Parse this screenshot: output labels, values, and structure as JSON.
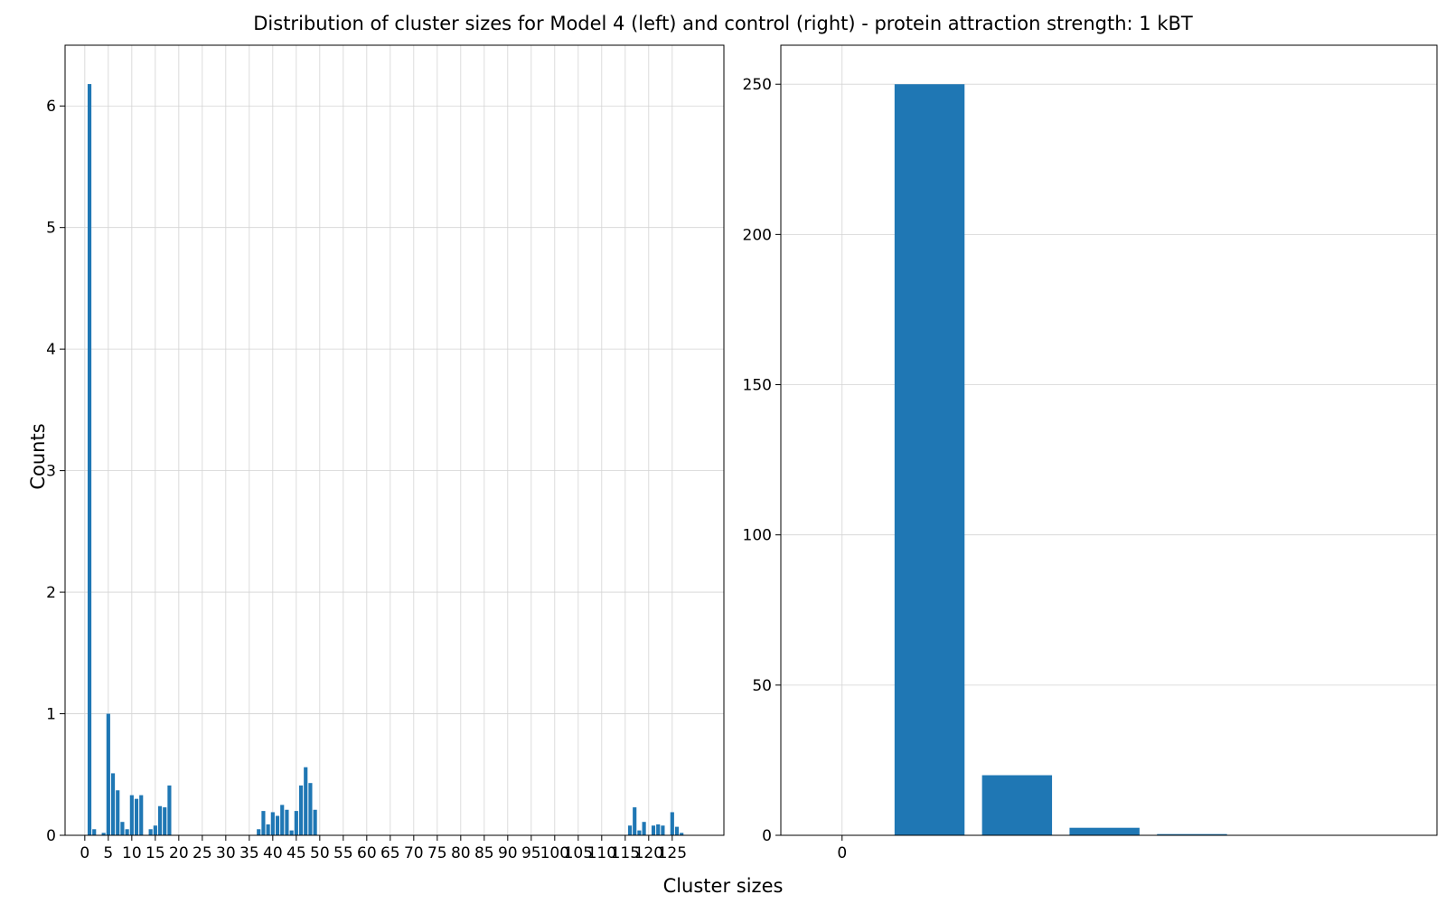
{
  "title": "Distribution of cluster sizes for Model 4 (left) and control (right) - protein attraction strength: 1 kBT",
  "xlabel": "Cluster sizes",
  "ylabel": "Counts",
  "colors": {
    "bar": "#1f77b4",
    "grid": "#d3d3d3"
  },
  "chart_data": [
    {
      "type": "bar",
      "panel": "left",
      "xlim": [
        -4.2,
        136
      ],
      "ylim": [
        0,
        6.5
      ],
      "xticks": [
        0,
        5,
        10,
        15,
        20,
        25,
        30,
        35,
        40,
        45,
        50,
        55,
        60,
        65,
        70,
        75,
        80,
        85,
        90,
        95,
        100,
        105,
        110,
        115,
        120,
        125
      ],
      "yticks": [
        0,
        1,
        2,
        3,
        4,
        5,
        6
      ],
      "grid": true,
      "bar_width": 0.8,
      "x": [
        1,
        2,
        4,
        5,
        6,
        7,
        8,
        9,
        10,
        11,
        12,
        14,
        15,
        16,
        17,
        18,
        37,
        38,
        39,
        40,
        41,
        42,
        43,
        44,
        45,
        46,
        47,
        48,
        49,
        116,
        117,
        118,
        119,
        121,
        122,
        123,
        125,
        126,
        127
      ],
      "values": [
        6.18,
        0.05,
        0.02,
        1.0,
        0.51,
        0.37,
        0.11,
        0.05,
        0.33,
        0.3,
        0.33,
        0.05,
        0.08,
        0.24,
        0.23,
        0.41,
        0.05,
        0.2,
        0.09,
        0.19,
        0.16,
        0.25,
        0.21,
        0.04,
        0.2,
        0.41,
        0.56,
        0.43,
        0.21,
        0.08,
        0.23,
        0.04,
        0.11,
        0.08,
        0.09,
        0.08,
        0.19,
        0.07,
        0.02
      ]
    },
    {
      "type": "bar",
      "panel": "right",
      "xlim": [
        -0.7,
        6.8
      ],
      "ylim": [
        0,
        263
      ],
      "xticks": [
        0
      ],
      "yticks": [
        0,
        50,
        100,
        150,
        200,
        250
      ],
      "grid": true,
      "bar_width": 0.8,
      "x": [
        1,
        2,
        3,
        4
      ],
      "values": [
        250,
        20,
        2.5,
        0.4
      ]
    }
  ]
}
